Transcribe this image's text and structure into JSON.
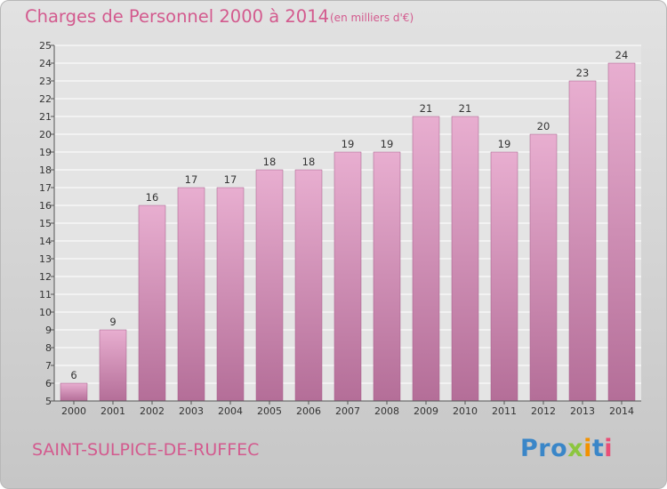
{
  "header": {
    "title": "Charges de Personnel 2000 à 2014",
    "subtitle": "(en milliers d'€)"
  },
  "footer": {
    "commune": "SAINT-SULPICE-DE-RUFFEC",
    "logo_text": [
      "Pro",
      "x",
      "i",
      "t",
      "i"
    ]
  },
  "colors": {
    "title": "#d35a8e",
    "bar_top": "#e8aed0",
    "bar_bottom": "#b46e98"
  },
  "chart_data": {
    "type": "bar",
    "title": "Charges de Personnel 2000 à 2014",
    "subtitle": "(en milliers d'€)",
    "xlabel": "",
    "ylabel": "",
    "categories": [
      "2000",
      "2001",
      "2002",
      "2003",
      "2004",
      "2005",
      "2006",
      "2007",
      "2008",
      "2009",
      "2010",
      "2011",
      "2012",
      "2013",
      "2014"
    ],
    "values": [
      6,
      9,
      16,
      17,
      17,
      18,
      18,
      19,
      19,
      21,
      21,
      19,
      20,
      23,
      24
    ],
    "ylim": [
      5,
      25
    ],
    "yticks": [
      5,
      6,
      7,
      8,
      9,
      10,
      11,
      12,
      13,
      14,
      15,
      16,
      17,
      18,
      19,
      20,
      21,
      22,
      23,
      24,
      25
    ],
    "grid": true,
    "legend": "none"
  }
}
